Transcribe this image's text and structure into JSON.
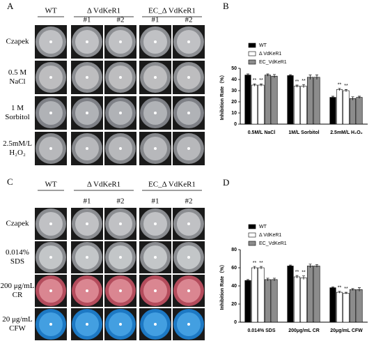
{
  "panels": [
    {
      "label": "A",
      "columns": [
        "WT",
        "Δ VdKeR1",
        "EC_Δ VdKeR1"
      ],
      "replicates": [
        "#1",
        "#2"
      ],
      "rows": [
        [
          "Czapek"
        ],
        [
          "0.5 M",
          "NaCl"
        ],
        [
          "1 M",
          "Sorbitol"
        ],
        [
          "2.5mM/L",
          "H₂O₂"
        ]
      ]
    },
    {
      "label": "C",
      "columns": [
        "WT",
        "Δ VdKeR1",
        "EC_Δ VdKeR1"
      ],
      "replicates": [
        "#1",
        "#2"
      ],
      "rows": [
        [
          "Czapek"
        ],
        [
          "0.014%",
          "SDS"
        ],
        [
          "200 μg/mL",
          "CR"
        ],
        [
          "20 μg/mL",
          "CFW"
        ]
      ]
    }
  ],
  "chart_data": [
    {
      "type": "bar",
      "panel_label": "B",
      "ylabel": "Inhibition Rate（%）",
      "categories": [
        "0.5M/L NaCl",
        "1M/L Sorbitol",
        "2.5mM/L H₂O₂"
      ],
      "ylim": [
        0,
        50
      ],
      "yticks": [
        0,
        10,
        20,
        30,
        40,
        50
      ],
      "significance_label": "**",
      "series": [
        {
          "name": "WT",
          "color": "#000000",
          "values": [
            [
              44
            ],
            [
              43.5
            ],
            [
              24
            ]
          ],
          "errors": [
            [
              1
            ],
            [
              0.8
            ],
            [
              1
            ]
          ],
          "marked": false
        },
        {
          "name": "Δ VdKeR1",
          "color": "#ffffff",
          "values": [
            [
              35,
              35
            ],
            [
              34,
              34
            ],
            [
              31,
              30
            ]
          ],
          "errors": [
            [
              1,
              1
            ],
            [
              1,
              1.5
            ],
            [
              1,
              1
            ]
          ],
          "marked": true
        },
        {
          "name": "EC_VdKeR1",
          "color": "#8c8c8c",
          "values": [
            [
              44,
              43
            ],
            [
              42,
              42
            ],
            [
              23,
              24
            ]
          ],
          "errors": [
            [
              1,
              1.5
            ],
            [
              2,
              2
            ],
            [
              1.5,
              1
            ]
          ],
          "marked": false
        }
      ]
    },
    {
      "type": "bar",
      "panel_label": "D",
      "ylabel": "Inhibition Rate（%）",
      "categories": [
        "0.014% SDS",
        "200μg/mL CR",
        "20μg/mL CFW"
      ],
      "ylim": [
        0,
        80
      ],
      "yticks": [
        0,
        20,
        40,
        60,
        80
      ],
      "significance_label": "**",
      "series": [
        {
          "name": "WT",
          "color": "#000000",
          "values": [
            [
              46
            ],
            [
              62
            ],
            [
              38
            ]
          ],
          "errors": [
            [
              1
            ],
            [
              1
            ],
            [
              1
            ]
          ],
          "marked": false
        },
        {
          "name": "Δ VdKeR1",
          "color": "#ffffff",
          "values": [
            [
              60,
              60
            ],
            [
              50,
              49
            ],
            [
              33,
              32
            ]
          ],
          "errors": [
            [
              1.5,
              1.5
            ],
            [
              1.5,
              2
            ],
            [
              1,
              1
            ]
          ],
          "marked": true
        },
        {
          "name": "EC_VdKeR1",
          "color": "#8c8c8c",
          "values": [
            [
              47,
              47
            ],
            [
              62,
              62
            ],
            [
              36,
              36
            ]
          ],
          "errors": [
            [
              1.5,
              1.5
            ],
            [
              2,
              1.5
            ],
            [
              1,
              2
            ]
          ],
          "marked": false
        }
      ]
    }
  ]
}
